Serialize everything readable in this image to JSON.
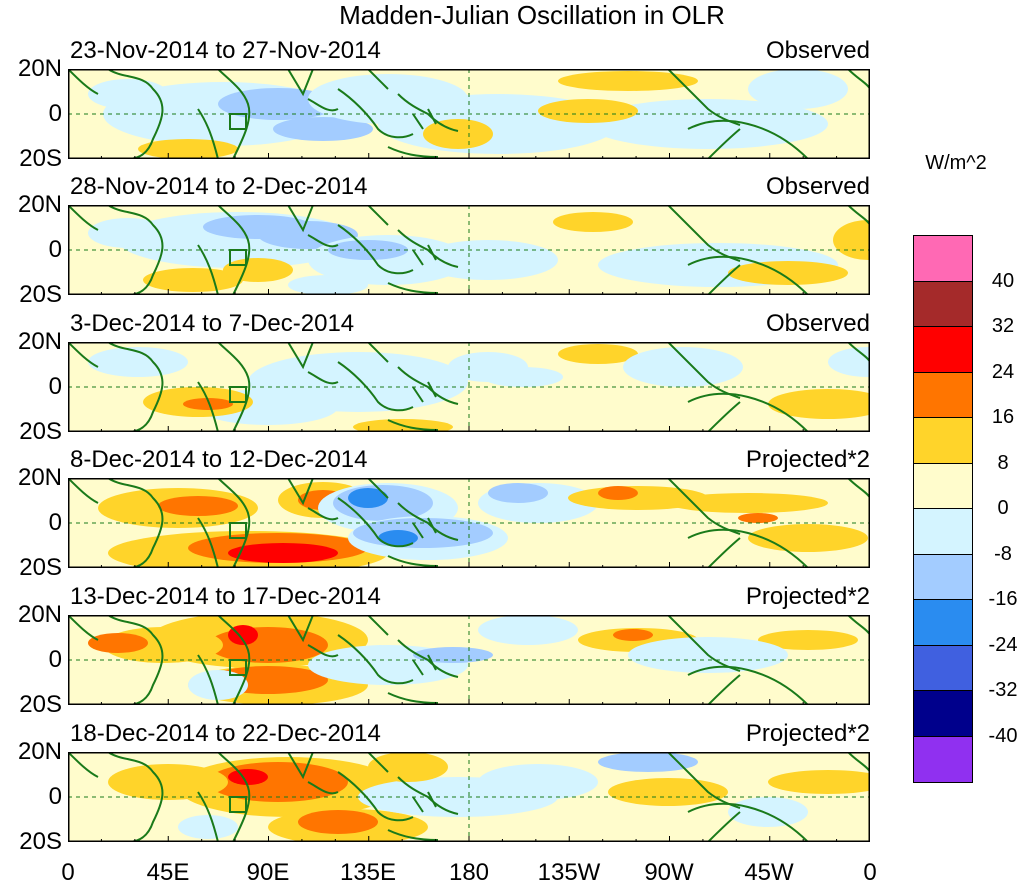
{
  "title": "Madden-Julian Oscillation in OLR",
  "units": "W/m^2",
  "lat_labels": [
    "20N",
    "0",
    "20S"
  ],
  "lon_labels": [
    "0",
    "45E",
    "90E",
    "135E",
    "180",
    "135W",
    "90W",
    "45W",
    "0"
  ],
  "panels": [
    {
      "period": "23-Nov-2014 to 27-Nov-2014",
      "status": "Observed"
    },
    {
      "period": "28-Nov-2014 to 2-Dec-2014",
      "status": "Observed"
    },
    {
      "period": "3-Dec-2014 to 7-Dec-2014",
      "status": "Observed"
    },
    {
      "period": "8-Dec-2014 to 12-Dec-2014",
      "status": "Projected*2"
    },
    {
      "period": "13-Dec-2014 to 17-Dec-2014",
      "status": "Projected*2"
    },
    {
      "period": "18-Dec-2014 to 22-Dec-2014",
      "status": "Projected*2"
    }
  ],
  "colorbar": {
    "labels": [
      "40",
      "32",
      "24",
      "16",
      "8",
      "0",
      "-8",
      "-16",
      "-24",
      "-32",
      "-40"
    ],
    "colors": [
      "#ff69b4",
      "#a52a2a",
      "#ff0000",
      "#ff7500",
      "#ffd42a",
      "#fffccc",
      "#d4f4ff",
      "#a3ccff",
      "#2a8cf0",
      "#4060e0",
      "#00008c",
      "#9030f0"
    ]
  },
  "colors": {
    "coast": "#1a7a1a",
    "box": "#1a7a1a",
    "equator_line": "#1a7a1a"
  }
}
